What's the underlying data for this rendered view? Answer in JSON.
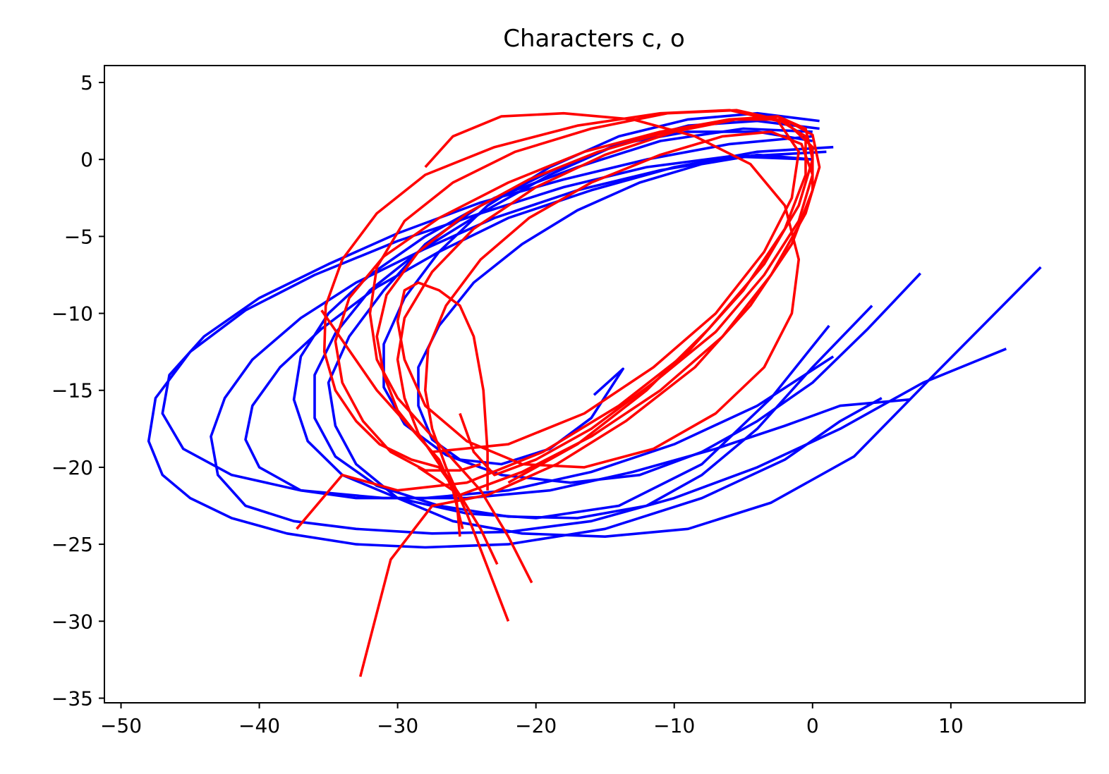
{
  "chart_data": {
    "type": "line",
    "title": "Characters c, o",
    "xlabel": "",
    "ylabel": "",
    "xlim": [
      -51.2,
      19.7
    ],
    "ylim": [
      -35.3,
      6.1
    ],
    "xticks": [
      -50,
      -40,
      -30,
      -20,
      -10,
      0,
      10
    ],
    "yticks": [
      5,
      0,
      -5,
      -10,
      -15,
      -20,
      -25,
      -30,
      -35
    ],
    "xtick_labels": [
      "−50",
      "−40",
      "−30",
      "−20",
      "−10",
      "0",
      "10"
    ],
    "ytick_labels": [
      "5",
      "0",
      "−5",
      "−10",
      "−15",
      "−20",
      "−25",
      "−30",
      "−35"
    ],
    "grid": false,
    "colors": {
      "c": "#0000ff",
      "o": "#ff0000"
    },
    "series": [
      {
        "color": "#0000ff",
        "x": [
          0,
          -6,
          -12,
          -18,
          -24,
          -30,
          -36,
          -41,
          -45,
          -47.5,
          -48,
          -47,
          -45,
          -42,
          -38,
          -33,
          -28,
          -22,
          -15,
          -8,
          -2,
          2,
          5
        ],
        "y": [
          0,
          0.2,
          -0.5,
          -1.8,
          -3.5,
          -5.3,
          -7.5,
          -9.8,
          -12.5,
          -15.5,
          -18.3,
          -20.5,
          -22,
          -23.3,
          -24.3,
          -25,
          -25.2,
          -25,
          -24,
          -22,
          -19.5,
          -17,
          -15.5
        ]
      },
      {
        "color": "#0000ff",
        "x": [
          0,
          -6,
          -12,
          -18,
          -24,
          -30,
          -35,
          -40,
          -44,
          -46.5,
          -47,
          -45.5,
          -42,
          -37,
          -31,
          -25,
          -19,
          -13,
          -7,
          -2,
          2,
          7
        ],
        "y": [
          1.5,
          1,
          0,
          -1.3,
          -2.8,
          -4.8,
          -6.8,
          -9,
          -11.5,
          -14,
          -16.5,
          -18.8,
          -20.5,
          -21.5,
          -22,
          -22,
          -21.5,
          -20.3,
          -18.8,
          -17.3,
          -16,
          -15.6
        ]
      },
      {
        "color": "#0000ff",
        "x": [
          1,
          -5,
          -11,
          -17,
          -23,
          -28,
          -33,
          -37,
          -40.5,
          -42.5,
          -43.5,
          -43,
          -41,
          -37.5,
          -33,
          -27.5,
          -22,
          -16,
          -10,
          -4,
          2,
          8,
          14
        ],
        "y": [
          0.5,
          0.2,
          -0.7,
          -2,
          -3.8,
          -5.8,
          -8,
          -10.3,
          -13,
          -15.5,
          -18,
          -20.5,
          -22.5,
          -23.5,
          -24,
          -24.3,
          -24.2,
          -23.5,
          -22,
          -20,
          -17.5,
          -14.5,
          -12.3
        ]
      },
      {
        "color": "#0000ff",
        "x": [
          1.5,
          -4,
          -10,
          -16,
          -22,
          -27,
          -31.5,
          -35.5,
          -38.5,
          -40.5,
          -41,
          -40,
          -37,
          -33,
          -28,
          -22,
          -16,
          -10,
          -4,
          1.5
        ],
        "y": [
          0.8,
          0.5,
          -0.5,
          -2,
          -3.8,
          -6,
          -8.3,
          -11,
          -13.5,
          -16,
          -18.2,
          -20,
          -21.5,
          -22,
          -22,
          -21.5,
          -20.3,
          -18.5,
          -16,
          -12.8
        ]
      },
      {
        "color": "#0000ff",
        "x": [
          0,
          -5,
          -11,
          -17,
          -23,
          -28,
          -32,
          -35,
          -37,
          -37.5,
          -36.5,
          -34,
          -30,
          -25,
          -20,
          -14,
          -8,
          -3,
          1.2
        ],
        "y": [
          1.8,
          2,
          1.2,
          -0.5,
          -2.5,
          -5,
          -7.5,
          -10,
          -12.8,
          -15.6,
          -18.3,
          -20.5,
          -22,
          -23,
          -23.3,
          -22.5,
          -19.8,
          -15.5,
          -10.8
        ]
      },
      {
        "color": "#0000ff",
        "x": [
          0.5,
          -4,
          -9,
          -14,
          -19,
          -24,
          -28.5,
          -32,
          -34.5,
          -36,
          -36,
          -34.5,
          -31.5,
          -27,
          -22,
          -17,
          -12,
          -8,
          -4,
          0,
          4.3
        ],
        "y": [
          2,
          2.5,
          2.2,
          1,
          -1,
          -3.5,
          -6,
          -8.5,
          -11.3,
          -14,
          -16.8,
          -19.3,
          -21.2,
          -22.5,
          -23.2,
          -23.3,
          -22.5,
          -20.5,
          -17.5,
          -13.5,
          -9.5
        ]
      },
      {
        "color": "#0000ff",
        "x": [
          0,
          -4,
          -9,
          -14,
          -19,
          -24,
          -28,
          -31,
          -33.5,
          -35,
          -34.5,
          -33,
          -30,
          -26,
          -21,
          -15,
          -9,
          -3,
          3,
          9,
          16.5
        ],
        "y": [
          1.2,
          1.8,
          1.8,
          1,
          -0.8,
          -3,
          -5.5,
          -8.5,
          -11.5,
          -14.5,
          -17.3,
          -19.8,
          -22,
          -23.5,
          -24.3,
          -24.5,
          -24,
          -22.3,
          -19.3,
          -13.8,
          -7
        ]
      },
      {
        "color": "#0000ff",
        "x": [
          0.5,
          -4,
          -9,
          -14,
          -19,
          -23.5,
          -27,
          -29.5,
          -31,
          -31,
          -29.5,
          -26.5,
          -22.5,
          -17.5,
          -12.5,
          -8,
          -4,
          0,
          4,
          7.8
        ],
        "y": [
          2.5,
          3,
          2.6,
          1.5,
          -0.5,
          -3,
          -6,
          -9,
          -12,
          -14.8,
          -17.2,
          -19.2,
          -20.5,
          -21,
          -20.5,
          -19,
          -17,
          -14.5,
          -11,
          -7.4
        ]
      },
      {
        "color": "#0000ff",
        "x": [
          0,
          -4,
          -8,
          -12.5,
          -17,
          -21,
          -24.5,
          -27,
          -28.5,
          -28.5,
          -27.5,
          -25.5,
          -22.5,
          -19,
          -16,
          -13.7,
          -15.8
        ],
        "y": [
          0,
          0.3,
          -0.3,
          -1.5,
          -3.3,
          -5.5,
          -8,
          -10.8,
          -13.5,
          -16,
          -18.2,
          -19.5,
          -19.8,
          -18.8,
          -16.8,
          -13.6,
          -15.3
        ]
      },
      {
        "color": "#ff0000",
        "x": [
          -25.5,
          -25.8,
          -27,
          -29,
          -31.3,
          -33,
          -34.5,
          -35.3,
          -35.2,
          -34,
          -31.5,
          -28,
          -23,
          -17,
          -11,
          -6,
          -2.5,
          -1,
          -1.5,
          -3.5,
          -7,
          -11.5,
          -16.5,
          -22,
          -27.5,
          -31.5,
          -35.5
        ],
        "y": [
          -24.5,
          -21.5,
          -20,
          -19.5,
          -18.5,
          -17,
          -15,
          -12.5,
          -9.5,
          -6.5,
          -3.5,
          -1,
          0.8,
          2.2,
          3,
          3.2,
          2.5,
          0.5,
          -2.5,
          -6,
          -10,
          -13.5,
          -16.5,
          -18.5,
          -19,
          -15,
          -9.8
        ]
      },
      {
        "color": "#ff0000",
        "x": [
          -24,
          -25.5,
          -28,
          -30.5,
          -32.5,
          -34,
          -34.5,
          -33.5,
          -31,
          -27,
          -22,
          -16.5,
          -11,
          -6,
          -2.5,
          -0.5,
          -0.5,
          -2,
          -5,
          -9,
          -14,
          -19.5,
          -25,
          -30,
          -34,
          -37.3
        ],
        "y": [
          -19.8,
          -20.2,
          -20.2,
          -19,
          -17,
          -14.5,
          -11.8,
          -9,
          -6.3,
          -3.8,
          -1.5,
          0.5,
          1.8,
          2.6,
          2.6,
          1.5,
          -1,
          -4.5,
          -8.5,
          -12.5,
          -16,
          -19,
          -21,
          -21.5,
          -20.5,
          -24
        ]
      },
      {
        "color": "#ff0000",
        "x": [
          -20.3,
          -22,
          -24,
          -26,
          -28,
          -30,
          -31.5,
          -32,
          -31.5,
          -29.5,
          -26,
          -21.5,
          -16,
          -10.5,
          -5.5,
          -2,
          0,
          0,
          -1.5,
          -4.5,
          -8.5,
          -13.5,
          -18.5,
          -23.5,
          -27.5,
          -30.5,
          -32.7
        ],
        "y": [
          -27.5,
          -24.5,
          -21.5,
          -19.5,
          -17.5,
          -15.5,
          -13,
          -10,
          -7,
          -4,
          -1.5,
          0.5,
          2,
          3,
          3.2,
          2.5,
          0.8,
          -2,
          -5.5,
          -9.5,
          -13.5,
          -17,
          -19.8,
          -21.8,
          -22.5,
          -26,
          -33.6
        ]
      },
      {
        "color": "#ff0000",
        "x": [
          -22.8,
          -24,
          -25.5,
          -27,
          -28.5,
          -29.5,
          -30,
          -29.5,
          -27.5,
          -24.5,
          -20,
          -15,
          -10,
          -5.5,
          -2,
          0,
          0.5,
          -0.5,
          -3,
          -6.5,
          -11,
          -16,
          -21,
          -25.5,
          -28.5
        ],
        "y": [
          -26.3,
          -24,
          -21.8,
          -19.8,
          -17.8,
          -15.5,
          -13,
          -10.3,
          -7.3,
          -4.5,
          -1.8,
          0.3,
          1.8,
          2.6,
          2.6,
          1.6,
          -0.5,
          -3.5,
          -7.5,
          -11.5,
          -15,
          -18,
          -20.3,
          -21.8,
          -20
        ]
      },
      {
        "color": "#ff0000",
        "x": [
          -22,
          -23.5,
          -25,
          -26.5,
          -27.5,
          -28,
          -27.8,
          -26.5,
          -24,
          -20.5,
          -16,
          -11,
          -6.5,
          -3,
          -0.8,
          0,
          -1,
          -3.5,
          -7,
          -11.5,
          -16,
          -20,
          -23,
          -24.5,
          -25.5
        ],
        "y": [
          -30,
          -26.5,
          -23,
          -20,
          -17.5,
          -15,
          -12.3,
          -9.5,
          -6.5,
          -3.8,
          -1.5,
          0.3,
          1.5,
          1.8,
          1,
          -1,
          -4,
          -7.5,
          -11.2,
          -14.5,
          -17.5,
          -19.5,
          -20.5,
          -19,
          -16.5
        ]
      },
      {
        "color": "#ff0000",
        "x": [
          -23.5,
          -23.5,
          -23.8,
          -24.5,
          -25.5,
          -27,
          -28.5,
          -29.5,
          -30,
          -29.5,
          -28,
          -25,
          -21,
          -16.5,
          -11.5,
          -7,
          -3.5,
          -1.5,
          -1,
          -2,
          -4.5,
          -8.5,
          -13,
          -18,
          -22.5,
          -26,
          -28
        ],
        "y": [
          -21.5,
          -19,
          -15,
          -11.5,
          -9.5,
          -8.5,
          -8,
          -8.5,
          -10.5,
          -13,
          -16,
          -18.3,
          -19.8,
          -20,
          -18.8,
          -16.5,
          -13.5,
          -10,
          -6.5,
          -3,
          -0.3,
          1.5,
          2.6,
          3,
          2.8,
          1.5,
          -0.5
        ]
      },
      {
        "color": "#ff0000",
        "x": [
          -25.3,
          -26,
          -27,
          -28.5,
          -30,
          -31,
          -31.5,
          -30.8,
          -28.5,
          -25,
          -20.5,
          -15.5,
          -10.5,
          -6,
          -2.5,
          -0.5,
          0,
          -1,
          -3.5,
          -7.5,
          -12,
          -17,
          -22
        ],
        "y": [
          -24,
          -21.5,
          -19.5,
          -18,
          -16.3,
          -14,
          -11.5,
          -8.8,
          -6,
          -3.5,
          -1.3,
          0.5,
          1.8,
          2.6,
          2.8,
          2,
          0,
          -3,
          -6.8,
          -11,
          -15,
          -18.5,
          -21
        ]
      }
    ]
  }
}
